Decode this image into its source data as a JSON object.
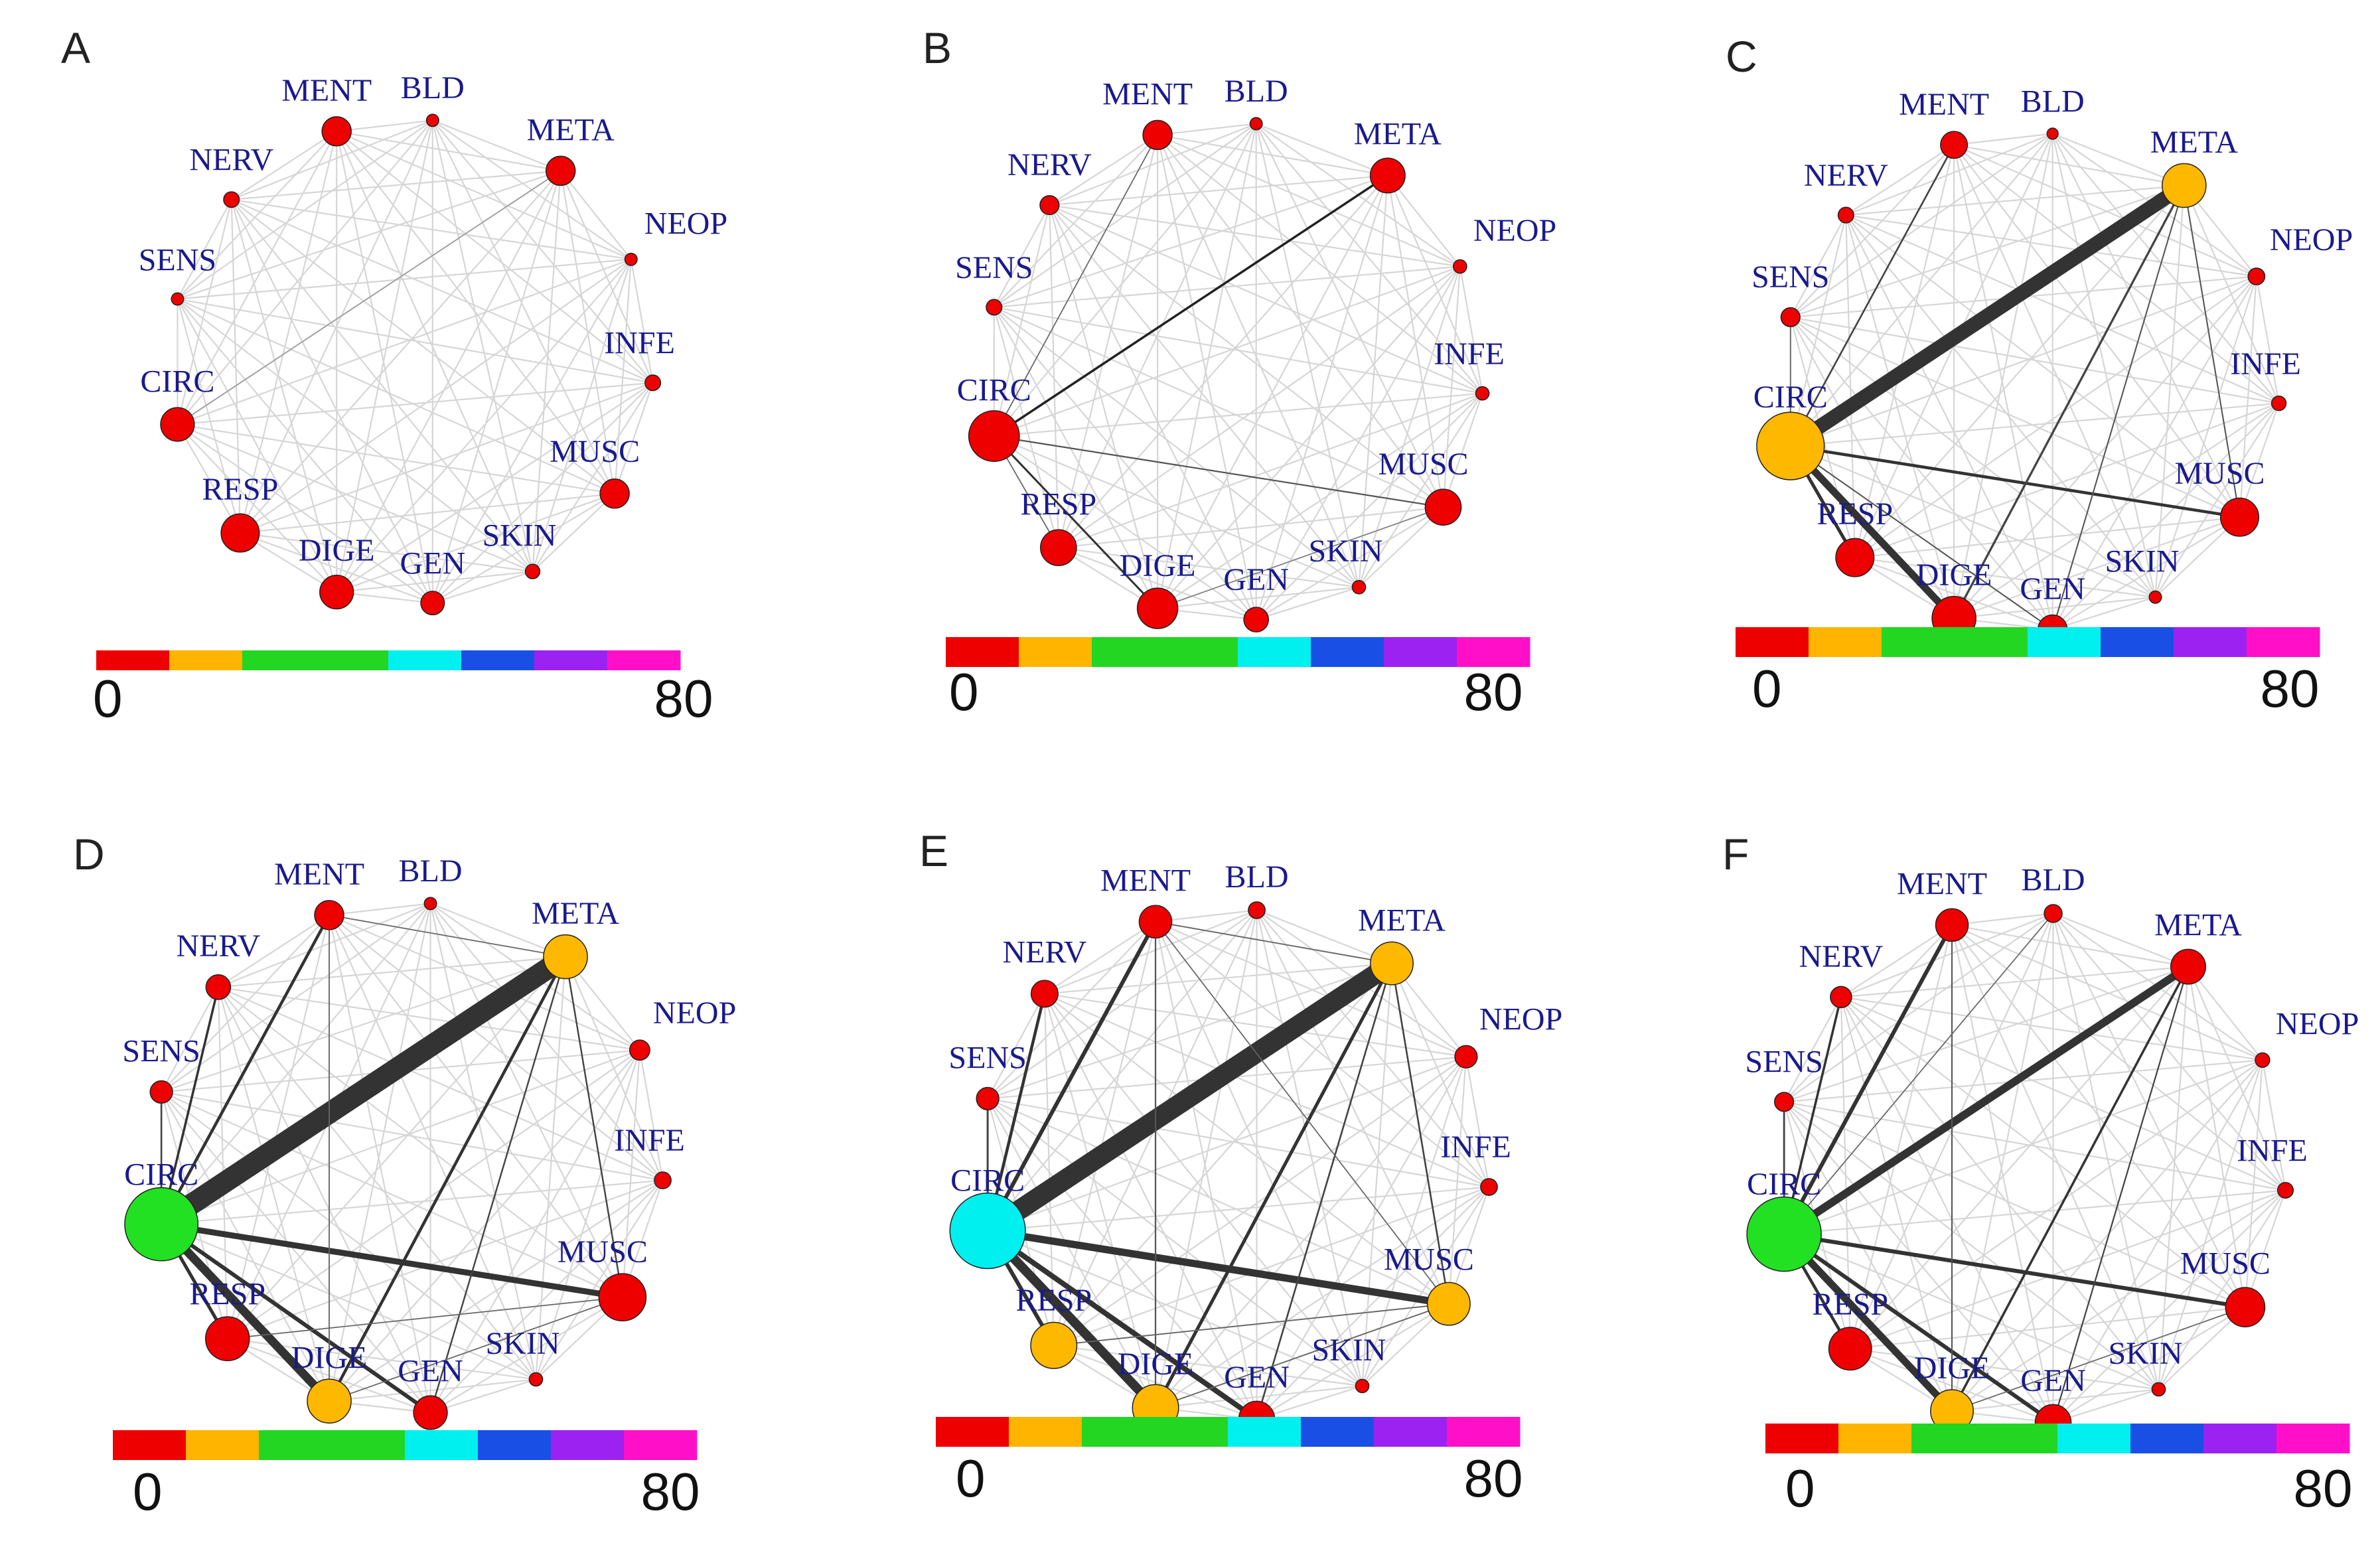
{
  "nodes": [
    "MENT",
    "BLD",
    "META",
    "NEOP",
    "INFE",
    "MUSC",
    "SKIN",
    "GEN",
    "DIGE",
    "RESP",
    "CIRC",
    "SENS",
    "NERV"
  ],
  "colorbar": {
    "min_label": "0",
    "max_label": "80",
    "colors": [
      "#ee0000",
      "#ffb400",
      "#22d622",
      "#22d622",
      "#00f0f0",
      "#1a4fe6",
      "#9b22f0",
      "#ff10c8"
    ]
  },
  "panels": [
    {
      "label": "A",
      "node_sizes": {
        "MENT": 2,
        "BLD": 0.5,
        "META": 2,
        "NEOP": 0.5,
        "INFE": 0.8,
        "MUSC": 2,
        "SKIN": 0.7,
        "GEN": 1.5,
        "DIGE": 2.4,
        "RESP": 2.8,
        "CIRC": 2.4,
        "SENS": 0.5,
        "NERV": 0.8
      },
      "node_colors": {},
      "edges": [
        [
          "CIRC",
          "META",
          1.6,
          "#9a9a9a"
        ]
      ]
    },
    {
      "label": "B",
      "node_sizes": {
        "MENT": 2,
        "BLD": 0.5,
        "META": 2.5,
        "NEOP": 0.6,
        "INFE": 0.6,
        "MUSC": 2.6,
        "SKIN": 0.6,
        "GEN": 1.6,
        "DIGE": 3,
        "RESP": 2.6,
        "CIRC": 3.9,
        "SENS": 0.8,
        "NERV": 1.1
      },
      "node_colors": {},
      "edges": [
        [
          "CIRC",
          "META",
          3.5,
          "#222"
        ],
        [
          "CIRC",
          "MUSC",
          2.2,
          "#555"
        ],
        [
          "CIRC",
          "DIGE",
          3,
          "#333"
        ],
        [
          "CIRC",
          "MENT",
          1.6,
          "#666"
        ],
        [
          "CIRC",
          "RESP",
          1.6,
          "#666"
        ],
        [
          "DIGE",
          "MUSC",
          1.4,
          "#777"
        ]
      ]
    },
    {
      "label": "C",
      "node_sizes": {
        "MENT": 1.8,
        "BLD": 0.4,
        "META": 3.3,
        "NEOP": 0.9,
        "INFE": 0.7,
        "MUSC": 2.8,
        "SKIN": 0.5,
        "GEN": 2,
        "DIGE": 3.3,
        "RESP": 2.8,
        "CIRC": 5.4,
        "SENS": 1.1,
        "NERV": 0.8
      },
      "node_colors": {
        "META": "#ffb800",
        "CIRC": "#ffb800"
      },
      "edges": [
        [
          "CIRC",
          "META",
          22,
          "#333"
        ],
        [
          "CIRC",
          "DIGE",
          11,
          "#333"
        ],
        [
          "CIRC",
          "MUSC",
          4.5,
          "#333"
        ],
        [
          "CIRC",
          "RESP",
          5,
          "#333"
        ],
        [
          "CIRC",
          "MENT",
          2.6,
          "#444"
        ],
        [
          "META",
          "DIGE",
          3.3,
          "#444"
        ],
        [
          "META",
          "GEN",
          2,
          "#555"
        ],
        [
          "META",
          "MUSC",
          2,
          "#555"
        ],
        [
          "CIRC",
          "GEN",
          2,
          "#555"
        ],
        [
          "CIRC",
          "SENS",
          1.8,
          "#666"
        ]
      ]
    },
    {
      "label": "D",
      "node_sizes": {
        "MENT": 2,
        "BLD": 0.5,
        "META": 3.3,
        "NEOP": 1.2,
        "INFE": 0.9,
        "MUSC": 3.6,
        "SKIN": 0.6,
        "GEN": 2.4,
        "DIGE": 3.3,
        "RESP": 3.3,
        "CIRC": 5.9,
        "SENS": 1.4,
        "NERV": 1.6
      },
      "node_colors": {
        "META": "#ffb800",
        "CIRC": "#22e022",
        "DIGE": "#ffb800"
      },
      "edges": [
        [
          "CIRC",
          "META",
          32,
          "#333"
        ],
        [
          "CIRC",
          "DIGE",
          13,
          "#333"
        ],
        [
          "CIRC",
          "MUSC",
          9,
          "#333"
        ],
        [
          "CIRC",
          "GEN",
          6,
          "#333"
        ],
        [
          "CIRC",
          "RESP",
          5,
          "#333"
        ],
        [
          "CIRC",
          "MENT",
          4.5,
          "#333"
        ],
        [
          "META",
          "DIGE",
          4.5,
          "#333"
        ],
        [
          "CIRC",
          "NERV",
          3.5,
          "#333"
        ],
        [
          "CIRC",
          "SENS",
          2.6,
          "#444"
        ],
        [
          "META",
          "GEN",
          2.4,
          "#444"
        ],
        [
          "META",
          "MUSC",
          2.4,
          "#444"
        ],
        [
          "MENT",
          "DIGE",
          1.8,
          "#666"
        ],
        [
          "RESP",
          "MUSC",
          1.6,
          "#666"
        ],
        [
          "MENT",
          "META",
          1.6,
          "#666"
        ],
        [
          "DIGE",
          "MUSC",
          1.6,
          "#666"
        ]
      ]
    },
    {
      "label": "E",
      "node_sizes": {
        "MENT": 2.3,
        "BLD": 0.9,
        "META": 3.2,
        "NEOP": 1.4,
        "INFE": 0.9,
        "MUSC": 3.2,
        "SKIN": 0.6,
        "GEN": 2.6,
        "DIGE": 3.5,
        "RESP": 3.5,
        "CIRC": 6.1,
        "SENS": 1.4,
        "NERV": 1.8
      },
      "node_colors": {
        "META": "#ffb800",
        "CIRC": "#00f0f0",
        "DIGE": "#ffb800",
        "RESP": "#ffb800",
        "MUSC": "#ffb800"
      },
      "edges": [
        [
          "CIRC",
          "META",
          30,
          "#333"
        ],
        [
          "CIRC",
          "DIGE",
          14,
          "#333"
        ],
        [
          "CIRC",
          "MUSC",
          11,
          "#333"
        ],
        [
          "CIRC",
          "GEN",
          8,
          "#333"
        ],
        [
          "CIRC",
          "RESP",
          6,
          "#333"
        ],
        [
          "CIRC",
          "MENT",
          6,
          "#333"
        ],
        [
          "META",
          "DIGE",
          5,
          "#333"
        ],
        [
          "CIRC",
          "NERV",
          4.5,
          "#333"
        ],
        [
          "CIRC",
          "SENS",
          3,
          "#444"
        ],
        [
          "META",
          "GEN",
          2.6,
          "#444"
        ],
        [
          "META",
          "MUSC",
          2.6,
          "#444"
        ],
        [
          "MENT",
          "DIGE",
          2.2,
          "#555"
        ],
        [
          "RESP",
          "MUSC",
          1.8,
          "#666"
        ],
        [
          "MENT",
          "META",
          1.8,
          "#666"
        ],
        [
          "DIGE",
          "MUSC",
          1.8,
          "#666"
        ],
        [
          "MENT",
          "MUSC",
          1.6,
          "#666"
        ]
      ]
    },
    {
      "label": "F",
      "node_sizes": {
        "MENT": 2.3,
        "BLD": 1,
        "META": 2.5,
        "NEOP": 0.7,
        "INFE": 0.8,
        "MUSC": 2.9,
        "SKIN": 0.6,
        "GEN": 2.6,
        "DIGE": 3.2,
        "RESP": 3.2,
        "CIRC": 6,
        "SENS": 1.1,
        "NERV": 1.3
      },
      "node_colors": {
        "CIRC": "#22e022",
        "DIGE": "#ffb800"
      },
      "edges": [
        [
          "CIRC",
          "META",
          12,
          "#333"
        ],
        [
          "CIRC",
          "DIGE",
          11,
          "#333"
        ],
        [
          "CIRC",
          "MUSC",
          6,
          "#333"
        ],
        [
          "CIRC",
          "GEN",
          6,
          "#333"
        ],
        [
          "CIRC",
          "RESP",
          4.5,
          "#333"
        ],
        [
          "CIRC",
          "MENT",
          6,
          "#333"
        ],
        [
          "META",
          "DIGE",
          3.5,
          "#333"
        ],
        [
          "CIRC",
          "NERV",
          3.5,
          "#333"
        ],
        [
          "CIRC",
          "SENS",
          2.8,
          "#444"
        ],
        [
          "META",
          "GEN",
          2.2,
          "#444"
        ],
        [
          "MENT",
          "DIGE",
          2,
          "#555"
        ],
        [
          "DIGE",
          "MUSC",
          1.6,
          "#666"
        ],
        [
          "CIRC",
          "BLD",
          1.6,
          "#666"
        ]
      ]
    }
  ]
}
